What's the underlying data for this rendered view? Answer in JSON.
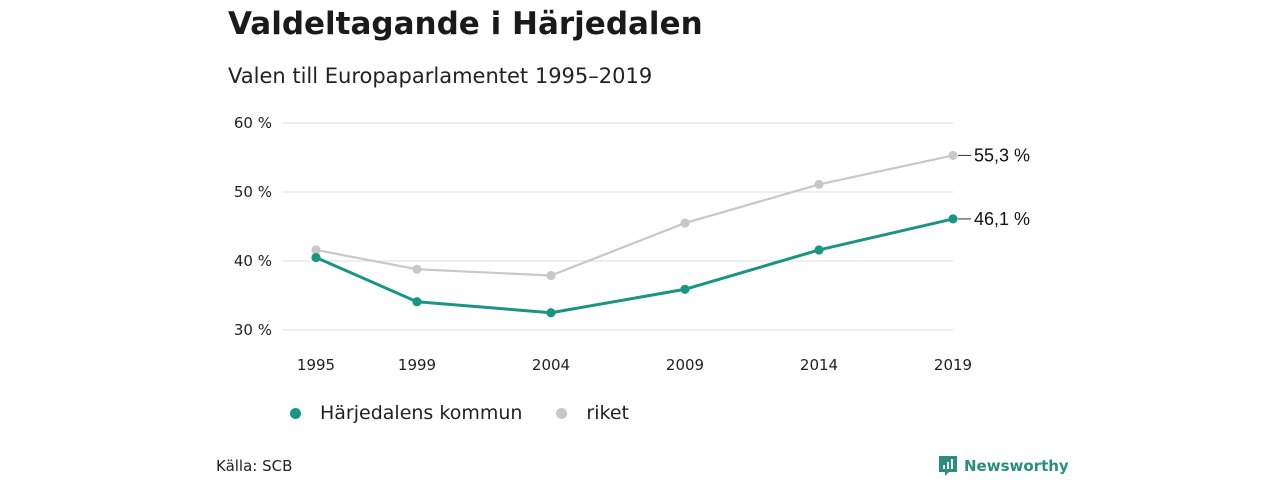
{
  "header": {
    "title": "Valdeltagande i Härjedalen",
    "subtitle": "Valen till Europaparlamentet 1995–2019"
  },
  "footer": {
    "source": "Källa: SCB",
    "brand": "Newsworthy"
  },
  "colors": {
    "kommun": "#1a9583",
    "riket": "#c8c8c8",
    "grid": "#dddddd",
    "brand": "#2b8e7d"
  },
  "chart_data": {
    "type": "line",
    "title": "Valdeltagande i Härjedalen",
    "subtitle": "Valen till Europaparlamentet 1995–2019",
    "x": [
      1995,
      1999,
      2004,
      2009,
      2014,
      2019
    ],
    "x_labels": [
      "1995",
      "1999",
      "2004",
      "2009",
      "2014",
      "2019"
    ],
    "y_ticks": [
      30,
      40,
      50,
      60
    ],
    "y_tick_labels": [
      "30 %",
      "40 %",
      "50 %",
      "60 %"
    ],
    "ylim": [
      30,
      60
    ],
    "grid": true,
    "legend_position": "bottom",
    "series": [
      {
        "name": "Härjedalens kommun",
        "color": "#1a9583",
        "values": [
          40.5,
          34.1,
          32.5,
          35.9,
          41.6,
          46.1
        ],
        "end_label": "46,1 %"
      },
      {
        "name": "riket",
        "color": "#c8c8c8",
        "values": [
          41.6,
          38.8,
          37.9,
          45.5,
          51.1,
          55.3
        ],
        "end_label": "55,3 %"
      }
    ]
  }
}
